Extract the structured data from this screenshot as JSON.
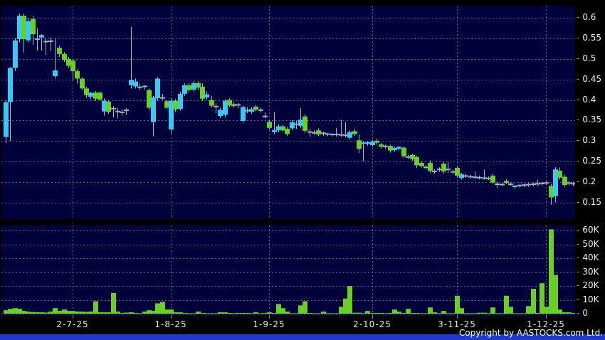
{
  "footer": {
    "copyright": "Copyright by AASTOCKS.com Ltd."
  },
  "chart_data": {
    "type": "candlestick_with_volume",
    "title": "",
    "price_axis": {
      "ticks": [
        "0.6",
        "0.55",
        "0.5",
        "0.45",
        "0.4",
        "0.35",
        "0.3",
        "0.25",
        "0.2",
        "0.15"
      ],
      "min": 0.15,
      "max": 0.6,
      "side": "right",
      "grid": "dashed"
    },
    "volume_axis": {
      "ticks": [
        "60K",
        "50K",
        "40K",
        "30K",
        "20K",
        "10K",
        "0"
      ],
      "min": 0,
      "max": 60000,
      "unit": "K",
      "side": "right",
      "grid": "dashed"
    },
    "x_axis": {
      "labels": [
        {
          "text": "2-7-25",
          "index": 15
        },
        {
          "text": "1-8-25",
          "index": 37
        },
        {
          "text": "1-9-25",
          "index": 59
        },
        {
          "text": "2-10-25",
          "index": 82
        },
        {
          "text": "3-11-25",
          "index": 101
        },
        {
          "text": "1-12-25",
          "index": 121
        }
      ]
    },
    "colors": {
      "up": "#38C8F2",
      "down": "#68CF28",
      "neutral": "#9FB0BE",
      "wick": "#A9B6C4",
      "volume_bar": "#68CF28",
      "background": "#00013A",
      "grid": "#73739B",
      "axis_text": "#F2F2F2",
      "bottom_bar": "#2138CC"
    },
    "legend": "candles are [open, high, low, close, color(u=cyan-up, d=green-down, n=gray-doji), volume-in-thousands]",
    "candles": [
      [
        0.31,
        0.4,
        0.295,
        0.395,
        "u",
        2.5
      ],
      [
        0.395,
        0.48,
        0.3,
        0.478,
        "u",
        3.5
      ],
      [
        0.478,
        0.55,
        0.47,
        0.545,
        "u",
        4.0
      ],
      [
        0.548,
        0.61,
        0.54,
        0.605,
        "u",
        3.5
      ],
      [
        0.605,
        0.61,
        0.515,
        0.548,
        "d",
        2.0
      ],
      [
        0.545,
        0.6,
        0.54,
        0.592,
        "u",
        1.5
      ],
      [
        0.597,
        0.605,
        0.534,
        0.56,
        "d",
        1.2
      ],
      [
        0.55,
        0.575,
        0.52,
        0.548,
        "n",
        1.0
      ],
      [
        0.552,
        0.56,
        0.52,
        0.558,
        "u",
        1.0
      ],
      [
        0.545,
        0.55,
        0.51,
        0.542,
        "n",
        0.8
      ],
      [
        0.545,
        0.552,
        0.52,
        0.543,
        "n",
        1.5
      ],
      [
        0.458,
        0.55,
        0.452,
        0.472,
        "u",
        4.0
      ],
      [
        0.527,
        0.532,
        0.505,
        0.512,
        "d",
        2.0
      ],
      [
        0.512,
        0.516,
        0.493,
        0.497,
        "d",
        3.0
      ],
      [
        0.5,
        0.505,
        0.478,
        0.483,
        "d",
        2.0
      ],
      [
        0.496,
        0.5,
        0.448,
        0.47,
        "d",
        2.0
      ],
      [
        0.47,
        0.475,
        0.44,
        0.452,
        "d",
        1.5
      ],
      [
        0.452,
        0.455,
        0.425,
        0.428,
        "d",
        1.5
      ],
      [
        0.428,
        0.432,
        0.405,
        0.412,
        "d",
        1.3
      ],
      [
        0.408,
        0.42,
        0.402,
        0.417,
        "u",
        1.5
      ],
      [
        0.418,
        0.422,
        0.398,
        0.403,
        "d",
        9.0
      ],
      [
        0.418,
        0.42,
        0.398,
        0.401,
        "d",
        1.0
      ],
      [
        0.372,
        0.404,
        0.362,
        0.398,
        "u",
        1.0
      ],
      [
        0.396,
        0.4,
        0.366,
        0.371,
        "d",
        1.0
      ],
      [
        0.376,
        0.385,
        0.358,
        0.379,
        "n",
        15.0
      ],
      [
        0.374,
        0.38,
        0.355,
        0.372,
        "n",
        1.5
      ],
      [
        0.371,
        0.378,
        0.362,
        0.37,
        "n",
        0.5
      ],
      [
        0.373,
        0.38,
        0.364,
        0.375,
        "n",
        0.8
      ],
      [
        0.436,
        0.578,
        0.428,
        0.449,
        "u",
        1.0
      ],
      [
        0.433,
        0.452,
        0.428,
        0.445,
        "u",
        0.5
      ],
      [
        0.43,
        0.44,
        0.424,
        0.431,
        "n",
        0.3
      ],
      [
        0.432,
        0.436,
        0.425,
        0.433,
        "n",
        1.5
      ],
      [
        0.424,
        0.428,
        0.375,
        0.381,
        "d",
        2.5
      ],
      [
        0.346,
        0.41,
        0.312,
        0.406,
        "u",
        2.0
      ],
      [
        0.404,
        0.456,
        0.398,
        0.452,
        "u",
        7.5
      ],
      [
        0.408,
        0.415,
        0.4,
        0.405,
        "n",
        8.5
      ],
      [
        0.397,
        0.4,
        0.378,
        0.381,
        "d",
        3.0
      ],
      [
        0.328,
        0.405,
        0.318,
        0.398,
        "u",
        3.0
      ],
      [
        0.398,
        0.402,
        0.37,
        0.377,
        "d",
        1.0
      ],
      [
        0.378,
        0.42,
        0.374,
        0.415,
        "u",
        1.0
      ],
      [
        0.415,
        0.44,
        0.41,
        0.436,
        "u",
        0.5
      ],
      [
        0.436,
        0.441,
        0.419,
        0.424,
        "d",
        0.3
      ],
      [
        0.425,
        0.446,
        0.42,
        0.441,
        "u",
        0.3
      ],
      [
        0.441,
        0.445,
        0.425,
        0.43,
        "d",
        1.5
      ],
      [
        0.432,
        0.44,
        0.398,
        0.403,
        "d",
        0.5
      ],
      [
        0.406,
        0.421,
        0.401,
        0.414,
        "u",
        0.3
      ],
      [
        0.4,
        0.41,
        0.382,
        0.386,
        "d",
        0.3
      ],
      [
        0.386,
        0.392,
        0.368,
        0.384,
        "n",
        0.3
      ],
      [
        0.361,
        0.381,
        0.356,
        0.376,
        "u",
        1.0
      ],
      [
        0.364,
        0.402,
        0.358,
        0.398,
        "u",
        1.0
      ],
      [
        0.4,
        0.404,
        0.383,
        0.387,
        "d",
        0.5
      ],
      [
        0.39,
        0.395,
        0.381,
        0.385,
        "d",
        0.3
      ],
      [
        0.386,
        0.392,
        0.38,
        0.388,
        "n",
        0.5
      ],
      [
        0.349,
        0.386,
        0.344,
        0.383,
        "u",
        0.5
      ],
      [
        0.376,
        0.382,
        0.368,
        0.374,
        "n",
        0.5
      ],
      [
        0.371,
        0.382,
        0.366,
        0.378,
        "u",
        0.3
      ],
      [
        0.384,
        0.388,
        0.372,
        0.376,
        "d",
        1.0
      ],
      [
        0.377,
        0.381,
        0.37,
        0.375,
        "n",
        0.3
      ],
      [
        0.362,
        0.37,
        0.355,
        0.36,
        "n",
        0.5
      ],
      [
        0.347,
        0.352,
        0.328,
        0.332,
        "d",
        1.0
      ],
      [
        0.322,
        0.37,
        0.317,
        0.327,
        "u",
        0.5
      ],
      [
        0.326,
        0.341,
        0.321,
        0.336,
        "u",
        7.0
      ],
      [
        0.336,
        0.34,
        0.322,
        0.326,
        "d",
        4.0
      ],
      [
        0.33,
        0.335,
        0.312,
        0.317,
        "d",
        1.5
      ],
      [
        0.331,
        0.351,
        0.326,
        0.346,
        "u",
        0.3
      ],
      [
        0.345,
        0.35,
        0.33,
        0.341,
        "n",
        0.3
      ],
      [
        0.337,
        0.38,
        0.332,
        0.352,
        "u",
        6.0
      ],
      [
        0.36,
        0.365,
        0.32,
        0.325,
        "d",
        9.0
      ],
      [
        0.324,
        0.33,
        0.31,
        0.322,
        "n",
        0.5
      ],
      [
        0.321,
        0.327,
        0.315,
        0.32,
        "n",
        0.3
      ],
      [
        0.326,
        0.331,
        0.312,
        0.316,
        "d",
        0.3
      ],
      [
        0.317,
        0.323,
        0.313,
        0.319,
        "n",
        1.5
      ],
      [
        0.316,
        0.32,
        0.312,
        0.317,
        "n",
        0.3
      ],
      [
        0.315,
        0.319,
        0.311,
        0.316,
        "n",
        0.3
      ],
      [
        0.315,
        0.332,
        0.311,
        0.316,
        "n",
        0.3
      ],
      [
        0.314,
        0.352,
        0.31,
        0.315,
        "n",
        5.0
      ],
      [
        0.313,
        0.346,
        0.309,
        0.314,
        "n",
        11.0
      ],
      [
        0.308,
        0.326,
        0.304,
        0.322,
        "u",
        20.0
      ],
      [
        0.324,
        0.33,
        0.313,
        0.317,
        "d",
        0.7
      ],
      [
        0.302,
        0.316,
        0.271,
        0.281,
        "d",
        0.7
      ],
      [
        0.293,
        0.3,
        0.251,
        0.295,
        "n",
        0.3
      ],
      [
        0.293,
        0.3,
        0.289,
        0.297,
        "u",
        2.0
      ],
      [
        0.29,
        0.303,
        0.286,
        0.299,
        "u",
        0.5
      ],
      [
        0.301,
        0.306,
        0.292,
        0.296,
        "d",
        0.5
      ],
      [
        0.292,
        0.296,
        0.282,
        0.286,
        "d",
        0.5
      ],
      [
        0.286,
        0.291,
        0.281,
        0.287,
        "n",
        0.3
      ],
      [
        0.288,
        0.291,
        0.272,
        0.277,
        "d",
        0.5
      ],
      [
        0.278,
        0.286,
        0.274,
        0.283,
        "u",
        3.0
      ],
      [
        0.281,
        0.289,
        0.277,
        0.286,
        "u",
        1.5
      ],
      [
        0.284,
        0.288,
        0.259,
        0.263,
        "d",
        0.5
      ],
      [
        0.262,
        0.267,
        0.256,
        0.261,
        "n",
        3.5
      ],
      [
        0.266,
        0.269,
        0.252,
        0.256,
        "d",
        0.5
      ],
      [
        0.261,
        0.264,
        0.234,
        0.241,
        "d",
        0.5
      ],
      [
        0.247,
        0.251,
        0.236,
        0.239,
        "d",
        0.3
      ],
      [
        0.237,
        0.242,
        0.231,
        0.236,
        "n",
        0.3
      ],
      [
        0.247,
        0.253,
        0.222,
        0.227,
        "d",
        4.5
      ],
      [
        0.227,
        0.232,
        0.221,
        0.226,
        "n",
        1.0
      ],
      [
        0.23,
        0.236,
        0.225,
        0.231,
        "n",
        0.3
      ],
      [
        0.245,
        0.249,
        0.221,
        0.226,
        "d",
        2.0
      ],
      [
        0.227,
        0.248,
        0.222,
        0.231,
        "n",
        0.3
      ],
      [
        0.226,
        0.23,
        0.22,
        0.225,
        "n",
        0.3
      ],
      [
        0.235,
        0.239,
        0.211,
        0.216,
        "d",
        13.0
      ],
      [
        0.21,
        0.223,
        0.206,
        0.219,
        "u",
        4.0
      ],
      [
        0.216,
        0.22,
        0.211,
        0.215,
        "n",
        0.3
      ],
      [
        0.214,
        0.218,
        0.209,
        0.213,
        "n",
        0.3
      ],
      [
        0.213,
        0.226,
        0.208,
        0.212,
        "n",
        0.3
      ],
      [
        0.212,
        0.216,
        0.207,
        0.211,
        "n",
        0.7
      ],
      [
        0.211,
        0.231,
        0.206,
        0.21,
        "n",
        0.7
      ],
      [
        0.21,
        0.214,
        0.205,
        0.209,
        "n",
        0.3
      ],
      [
        0.216,
        0.221,
        0.196,
        0.199,
        "d",
        4.5
      ],
      [
        0.197,
        0.201,
        0.185,
        0.195,
        "n",
        0.3
      ],
      [
        0.195,
        0.199,
        0.19,
        0.194,
        "n",
        0.3
      ],
      [
        0.203,
        0.207,
        0.195,
        0.198,
        "d",
        13.0
      ],
      [
        0.196,
        0.2,
        0.191,
        0.195,
        "n",
        5.0
      ],
      [
        0.188,
        0.194,
        0.184,
        0.192,
        "u",
        0.3
      ],
      [
        0.191,
        0.196,
        0.187,
        0.192,
        "n",
        0.3
      ],
      [
        0.192,
        0.196,
        0.188,
        0.193,
        "n",
        0.3
      ],
      [
        0.193,
        0.198,
        0.189,
        0.194,
        "n",
        5.5
      ],
      [
        0.194,
        0.199,
        0.19,
        0.195,
        "n",
        18.0
      ],
      [
        0.195,
        0.206,
        0.191,
        0.196,
        "n",
        0.5
      ],
      [
        0.196,
        0.201,
        0.192,
        0.197,
        "n",
        22.0
      ],
      [
        0.197,
        0.202,
        0.193,
        0.198,
        "n",
        5.0
      ],
      [
        0.191,
        0.196,
        0.145,
        0.163,
        "d",
        61.0
      ],
      [
        0.166,
        0.236,
        0.151,
        0.231,
        "u",
        28.0
      ],
      [
        0.228,
        0.236,
        0.206,
        0.211,
        "d",
        3.0
      ],
      [
        0.213,
        0.218,
        0.189,
        0.193,
        "d",
        1.0
      ],
      [
        0.197,
        0.202,
        0.192,
        0.198,
        "n",
        1.0
      ],
      [
        0.196,
        0.201,
        0.191,
        0.196,
        "n",
        0.5
      ]
    ]
  }
}
